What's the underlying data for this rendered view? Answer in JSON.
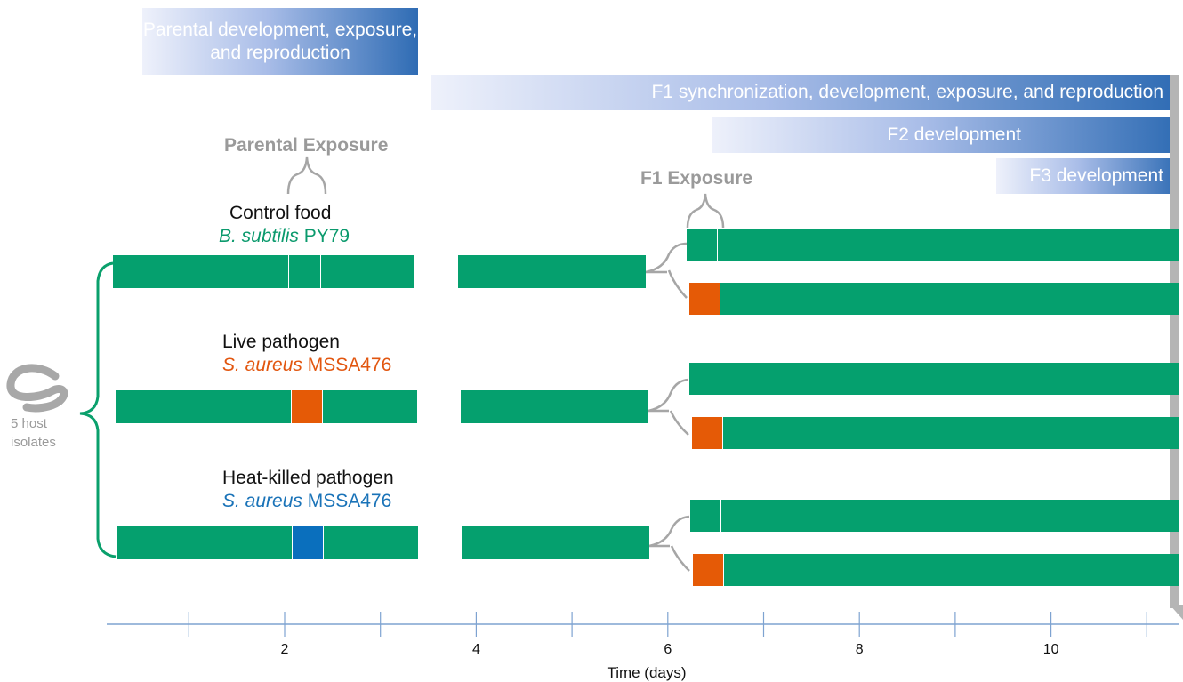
{
  "phases": {
    "parental": "Parental development, exposure, and reproduction",
    "f1": "F1 synchronization, development, exposure, and reproduction",
    "f2": "F2 development",
    "f3": "F3 development"
  },
  "exposure_labels": {
    "parental": "Parental Exposure",
    "f1": "F1 Exposure"
  },
  "host": {
    "line1": "5 host",
    "line2": "isolates"
  },
  "conditions": [
    {
      "name": "Control food",
      "organism_italic": "B. subtilis",
      "organism_strain": "PY79",
      "color": "#0b9a6d"
    },
    {
      "name": "Live pathogen",
      "organism_italic": "S. aureus",
      "organism_strain": "MSSA476",
      "color": "#e2560f"
    },
    {
      "name": "Heat-killed pathogen",
      "organism_italic": "S. aureus",
      "organism_strain": "MSSA476",
      "color": "#1a73b8"
    }
  ],
  "colors": {
    "control_bar": "#05a06e",
    "live_pathogen": "#e55a06",
    "heat_killed": "#0a6fbd",
    "axis": "#7ea3d1",
    "brace_green": "#0aa06c",
    "brace_gray": "#a6a6a6"
  },
  "chart_data": {
    "type": "timeline",
    "xlabel": "Time (days)",
    "xlim": [
      0,
      11.3
    ],
    "ticks": [
      2,
      4,
      6,
      8,
      10
    ],
    "minor_ticks": [
      1,
      2,
      3,
      4,
      5,
      6,
      7,
      8,
      9,
      10,
      11
    ],
    "parental_exposure_days": [
      2.05,
      2.4
    ],
    "f1_exposure_days": [
      6.3,
      6.6
    ]
  }
}
